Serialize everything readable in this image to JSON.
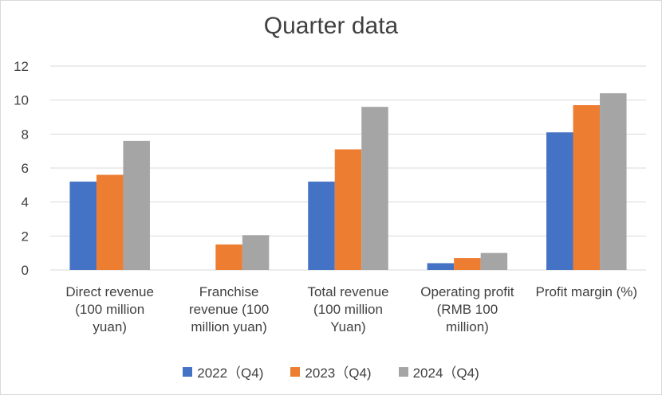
{
  "chart_data": {
    "type": "bar",
    "title": "Quarter data",
    "categories": [
      [
        "Direct revenue",
        "(100 million",
        "yuan)"
      ],
      [
        "Franchise",
        "revenue (100",
        "million yuan)"
      ],
      [
        "Total revenue",
        "(100 million",
        "Yuan)"
      ],
      [
        "Operating profit",
        "(RMB 100",
        "million)"
      ],
      [
        "Profit margin (%)"
      ]
    ],
    "series": [
      {
        "name": "2022（Q4)",
        "color": "#4472C4",
        "values": [
          5.2,
          0,
          5.2,
          0.4,
          8.1
        ]
      },
      {
        "name": "2023（Q4)",
        "color": "#ED7D31",
        "values": [
          5.6,
          1.5,
          7.1,
          0.7,
          9.7
        ]
      },
      {
        "name": "2024（Q4)",
        "color": "#A5A5A5",
        "values": [
          7.6,
          2.05,
          9.6,
          1.0,
          10.4
        ]
      }
    ],
    "ylim": [
      0,
      12
    ],
    "yticks": [
      0,
      2,
      4,
      6,
      8,
      10,
      12
    ],
    "grid": true,
    "legend_position": "bottom"
  }
}
